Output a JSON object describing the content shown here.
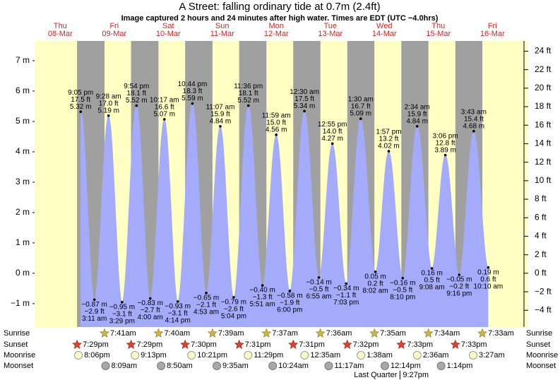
{
  "chart_data": {
    "type": "tide",
    "title": "A Street: falling  ordinary tide at 0.7m (2.4ft)",
    "subtitle": "Image captured 2 hours and 24 minutes after high water. Times are EDT (UTC −4.0hrs)",
    "ylim": [
      -1.77,
      7.65
    ],
    "yticks": [
      {
        "value": -1,
        "label": "−1 m"
      },
      {
        "value": 0,
        "label": "0 m"
      },
      {
        "value": 1,
        "label": "1 m"
      },
      {
        "value": 2,
        "label": "2 m"
      },
      {
        "value": 3,
        "label": "3 m"
      },
      {
        "value": 4,
        "label": "4 m"
      },
      {
        "value": 5,
        "label": "5 m"
      },
      {
        "value": 6,
        "label": "6 m"
      },
      {
        "value": 7,
        "label": "7 m"
      }
    ],
    "y2lim": [
      -5.81,
      25.1
    ],
    "y2ticks": [
      {
        "value": -4,
        "label": "−4 ft"
      },
      {
        "value": -2,
        "label": "−2 ft"
      },
      {
        "value": 0,
        "label": "0 ft"
      },
      {
        "value": 2,
        "label": "2 ft"
      },
      {
        "value": 4,
        "label": "4 ft"
      },
      {
        "value": 6,
        "label": "6 ft"
      },
      {
        "value": 8,
        "label": "8 ft"
      },
      {
        "value": 10,
        "label": "10 ft"
      },
      {
        "value": 12,
        "label": "12 ft"
      },
      {
        "value": 14,
        "label": "14 ft"
      },
      {
        "value": 16,
        "label": "16 ft"
      },
      {
        "value": 18,
        "label": "18 ft"
      },
      {
        "value": 20,
        "label": "20 ft"
      },
      {
        "value": 22,
        "label": "22 ft"
      },
      {
        "value": 24,
        "label": "24 ft"
      }
    ],
    "color": "#a3abfa",
    "row_labels": [
      "Sunrise",
      "Sunset",
      "Moonrise",
      "Moonset"
    ],
    "days": [
      {
        "weekday": "Thu",
        "date": "08-Mar",
        "sunrise": null,
        "sunset": "7:29pm",
        "moonrise": "8:06pm",
        "moonset": null,
        "tides": [
          {
            "time": "9:05 pm",
            "value": 5.32,
            "value_label": "5.32 m",
            "ft_label": "17.5 ft"
          }
        ]
      },
      {
        "weekday": "Fri",
        "date": "09-Mar",
        "sunrise": "7:41am",
        "sunset": "7:29pm",
        "moonrise": "9:13pm",
        "moonset": "8:09am",
        "tides": [
          {
            "time": "3:11 am",
            "value": -0.87,
            "value_label": "−0.87 m",
            "ft_label": "−2.9 ft"
          },
          {
            "time": "9:28 am",
            "value": 5.19,
            "value_label": "5.19 m",
            "ft_label": "17.0 ft"
          },
          {
            "time": "3:29 pm",
            "value": -0.95,
            "value_label": "−0.95 m",
            "ft_label": "−3.1 ft"
          },
          {
            "time": "9:54 pm",
            "value": 5.52,
            "value_label": "5.52 m",
            "ft_label": "18.1 ft"
          }
        ]
      },
      {
        "weekday": "Sat",
        "date": "10-Mar",
        "sunrise": "7:40am",
        "sunset": "7:30pm",
        "moonrise": "10:21pm",
        "moonset": "8:50am",
        "tides": [
          {
            "time": "4:00 am",
            "value": -0.83,
            "value_label": "−0.83 m",
            "ft_label": "−2.7 ft"
          },
          {
            "time": "10:17 am",
            "value": 5.07,
            "value_label": "5.07 m",
            "ft_label": "16.6 ft"
          },
          {
            "time": "4:14 pm",
            "value": -0.93,
            "value_label": "−0.93 m",
            "ft_label": "−3.1 ft"
          },
          {
            "time": "10:44 pm",
            "value": 5.59,
            "value_label": "5.59 m",
            "ft_label": "18.3 ft"
          }
        ]
      },
      {
        "weekday": "Sun",
        "date": "11-Mar",
        "sunrise": "7:39am",
        "sunset": "7:31pm",
        "moonrise": "11:29pm",
        "moonset": "9:35am",
        "tides": [
          {
            "time": "4:53 am",
            "value": -0.65,
            "value_label": "−0.65 m",
            "ft_label": "−2.1 ft"
          },
          {
            "time": "11:07 am",
            "value": 4.84,
            "value_label": "4.84 m",
            "ft_label": "15.9 ft"
          },
          {
            "time": "5:04 pm",
            "value": -0.79,
            "value_label": "−0.79 m",
            "ft_label": "−2.6 ft"
          },
          {
            "time": "11:36 pm",
            "value": 5.52,
            "value_label": "5.52 m",
            "ft_label": "18.1 ft"
          }
        ]
      },
      {
        "weekday": "Mon",
        "date": "12-Mar",
        "sunrise": "7:37am",
        "sunset": "7:31pm",
        "moonrise": null,
        "moonset": "10:24am",
        "tides": [
          {
            "time": "5:51 am",
            "value": -0.4,
            "value_label": "−0.40 m",
            "ft_label": "−1.3 ft"
          },
          {
            "time": "11:59 am",
            "value": 4.56,
            "value_label": "4.56 m",
            "ft_label": "15.0 ft"
          },
          {
            "time": "6:00 pm",
            "value": -0.58,
            "value_label": "−0.58 m",
            "ft_label": "−1.9 ft"
          }
        ]
      },
      {
        "weekday": "Tue",
        "date": "13-Mar",
        "sunrise": "7:36am",
        "sunset": "7:32pm",
        "moonrise": "12:35am",
        "moonset": "11:17am",
        "tides": [
          {
            "time": "12:30 am",
            "value": 5.34,
            "value_label": "5.34 m",
            "ft_label": "17.5 ft"
          },
          {
            "time": "6:55 am",
            "value": -0.14,
            "value_label": "−0.14 m",
            "ft_label": "−0.5 ft"
          },
          {
            "time": "12:55 pm",
            "value": 4.27,
            "value_label": "4.27 m",
            "ft_label": "14.0 ft"
          },
          {
            "time": "7:03 pm",
            "value": -0.34,
            "value_label": "−0.34 m",
            "ft_label": "−1.1 ft"
          }
        ]
      },
      {
        "weekday": "Wed",
        "date": "14-Mar",
        "sunrise": "7:35am",
        "sunset": "7:33pm",
        "moonrise": "1:38am",
        "moonset": "12:14pm",
        "phase": {
          "name": "Last Quarter",
          "time": "9:27pm"
        },
        "tides": [
          {
            "time": "1:30 am",
            "value": 5.09,
            "value_label": "5.09 m",
            "ft_label": "16.7 ft"
          },
          {
            "time": "8:02 am",
            "value": 0.05,
            "value_label": "0.05 m",
            "ft_label": "0.2 ft"
          },
          {
            "time": "1:57 pm",
            "value": 4.02,
            "value_label": "4.02 m",
            "ft_label": "13.2 ft"
          },
          {
            "time": "8:10 pm",
            "value": -0.16,
            "value_label": "−0.16 m",
            "ft_label": "−0.5 ft"
          }
        ]
      },
      {
        "weekday": "Thu",
        "date": "15-Mar",
        "sunrise": "7:34am",
        "sunset": "7:33pm",
        "moonrise": "2:36am",
        "moonset": "1:14pm",
        "tides": [
          {
            "time": "2:34 am",
            "value": 4.84,
            "value_label": "4.84 m",
            "ft_label": "15.9 ft"
          },
          {
            "time": "9:08 am",
            "value": 0.16,
            "value_label": "0.16 m",
            "ft_label": "0.5 ft"
          },
          {
            "time": "3:06 pm",
            "value": 3.89,
            "value_label": "3.89 m",
            "ft_label": "12.8 ft"
          },
          {
            "time": "9:16 pm",
            "value": -0.05,
            "value_label": "−0.05 m",
            "ft_label": "−0.2 ft"
          }
        ]
      },
      {
        "weekday": "Fri",
        "date": "16-Mar",
        "sunrise": "7:33am",
        "sunset": null,
        "moonrise": "3:27am",
        "moonset": null,
        "tides": [
          {
            "time": "3:43 am",
            "value": 4.68,
            "value_label": "4.68 m",
            "ft_label": "15.4 ft"
          },
          {
            "time": "10:10 am",
            "value": 0.19,
            "value_label": "0.19 m",
            "ft_label": "0.6 ft"
          }
        ]
      }
    ]
  }
}
